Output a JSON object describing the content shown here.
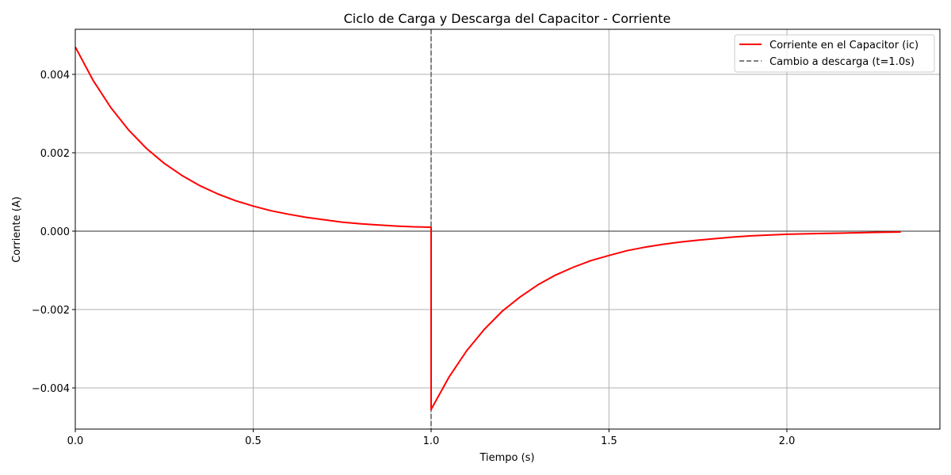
{
  "chart_data": {
    "type": "line",
    "title": "Ciclo de Carga y Descarga del Capacitor - Corriente",
    "xlabel": "Tiempo (s)",
    "ylabel": "Corriente (A)",
    "xlim": [
      0,
      2.43
    ],
    "ylim": [
      -0.00505,
      0.00515
    ],
    "xticks": [
      0,
      0.5,
      1.0,
      1.5,
      2.0
    ],
    "xtick_labels": [
      "0.0",
      "0.5",
      "1.0",
      "1.5",
      "2.0"
    ],
    "yticks": [
      -0.004,
      -0.002,
      0.0,
      0.002,
      0.004
    ],
    "ytick_labels": [
      "−0.004",
      "−0.002",
      "0.000",
      "0.002",
      "0.004"
    ],
    "grid": true,
    "legend_position": "top-right",
    "zero_line": true,
    "series": [
      {
        "name": "Corriente en el Capacitor (ic)",
        "color": "#ff0000",
        "style": "solid",
        "x": [
          0.0,
          0.05,
          0.1,
          0.15,
          0.2,
          0.25,
          0.3,
          0.35,
          0.4,
          0.45,
          0.5,
          0.55,
          0.6,
          0.65,
          0.7,
          0.75,
          0.8,
          0.85,
          0.9,
          0.95,
          1.0,
          1.0,
          1.05,
          1.1,
          1.15,
          1.2,
          1.25,
          1.3,
          1.35,
          1.4,
          1.45,
          1.5,
          1.55,
          1.6,
          1.65,
          1.7,
          1.75,
          1.8,
          1.85,
          1.9,
          1.95,
          2.0,
          2.05,
          2.1,
          2.15,
          2.2,
          2.25,
          2.32
        ],
        "y": [
          0.0047,
          0.00385,
          0.00315,
          0.00258,
          0.00211,
          0.00173,
          0.00142,
          0.00116,
          0.00095,
          0.00078,
          0.00064,
          0.00052,
          0.00043,
          0.00035,
          0.00029,
          0.00023,
          0.00019,
          0.00016,
          0.00013,
          0.00011,
          0.0001,
          -0.00455,
          -0.00373,
          -0.00305,
          -0.0025,
          -0.00204,
          -0.00168,
          -0.00137,
          -0.00112,
          -0.00092,
          -0.00075,
          -0.00062,
          -0.0005,
          -0.00041,
          -0.00034,
          -0.00028,
          -0.00023,
          -0.00019,
          -0.00015,
          -0.00012,
          -0.0001,
          -8e-05,
          -7e-05,
          -6e-05,
          -5e-05,
          -4e-05,
          -3e-05,
          -2e-05
        ]
      }
    ],
    "vlines": [
      {
        "name": "Cambio a descarga (t=1.0s)",
        "x": 1.0,
        "color": "#808080",
        "style": "dashed"
      }
    ]
  }
}
